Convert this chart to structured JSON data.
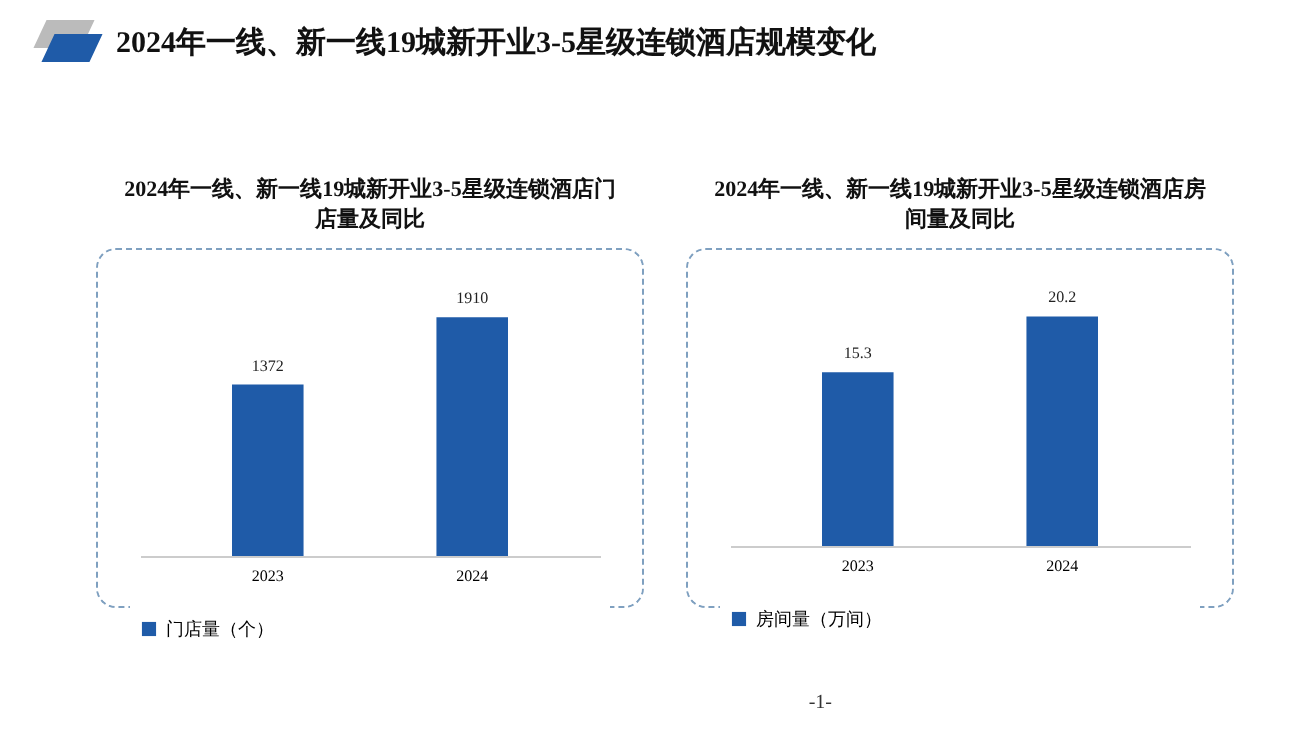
{
  "chart_data": [
    {
      "type": "other",
      "title": "2024年一线、新一线19城新开业3-5星级连锁酒店规模变化",
      "annotations": [
        "-1-"
      ]
    },
    {
      "type": "bar",
      "title": "2024年一线、新一线19城新开业3-5星级连锁酒店门店量及同比",
      "categories": [
        "2023",
        "2024"
      ],
      "series": [
        {
          "name": "门店量（个）",
          "color": "#1f5ba8",
          "values": [
            1372,
            1910
          ]
        }
      ],
      "data_labels": true,
      "tick_labels": "x",
      "grid": false,
      "legend": "bottom"
    },
    {
      "type": "bar",
      "title": "2024年一线、新一线19城新开业3-5星级连锁酒店房间量及同比",
      "categories": [
        "2023",
        "2024"
      ],
      "series": [
        {
          "name": "房间量（万间）",
          "color": "#1f5ba8",
          "values": [
            15.3,
            20.2
          ]
        }
      ],
      "data_labels": true,
      "tick_labels": "x",
      "grid": false,
      "legend": "bottom"
    }
  ]
}
